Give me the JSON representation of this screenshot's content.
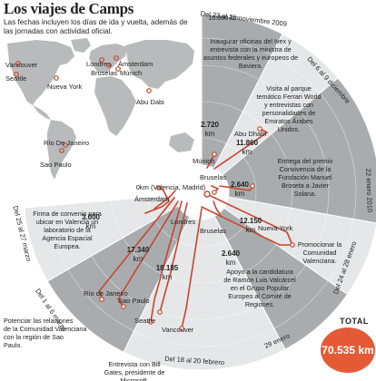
{
  "title": "Los viajes de Camps",
  "subtitle": "Las fechas incluyen los días de ida y vuelta, además de las jornadas con actividad oficial.",
  "colors": {
    "sector_gray": "#a9acae",
    "sector_light": "#e6e7e8",
    "route": "#c8452f",
    "land": "#b8babc",
    "total": "#e45a37"
  },
  "map": {
    "cities": [
      "Vancouver",
      "Seattle",
      "Nueva York",
      "Londres",
      "Ámsterdam",
      "Bruselas",
      "Múnich",
      "Abu Dabi",
      "Río De Janeiro",
      "Sao Paulo"
    ]
  },
  "chart_data": {
    "type": "radial",
    "radius_scale": {
      "label": "10.000 km",
      "max_km": 10000
    },
    "origin_label": "0km (Valencia, Madrid)",
    "trips": [
      {
        "dates": "Del 23 al 25 noviembre 2009",
        "km": "",
        "description": "Inaugurar oficinas del Ivex y entrevista con la ministra de asuntos federales y europeos de Baviera.",
        "destinations": [
          "Múnich"
        ]
      },
      {
        "dates": "Del 6 al 9 diciembre",
        "km": "11.860 km",
        "description": "Visita al parque temático Ferrari World y entrevistas con personalidades de Emiratos Árabes Unidos.",
        "destinations": [
          "Abu Dhabi"
        ]
      },
      {
        "dates": "",
        "km": "2.720 km",
        "description": "",
        "destinations": [
          "Múnich"
        ]
      },
      {
        "dates": "22 enero 2010",
        "km": "2.640 km",
        "description": "Entrega del premio Convivencia de la Fundación Manuel Broseta a Javier Solana.",
        "destinations": [
          "Bruselas"
        ]
      },
      {
        "dates": "Del 24 al 28 enero",
        "km": "12.150 km",
        "description": "Promocionar la Comunidad Valenciana.",
        "destinations": [
          "Nueva York"
        ]
      },
      {
        "dates": "29 enero",
        "km": "2.640 km",
        "description": "Apoyo a la candidatura de Ramón Luis Valcárcel en el Grupo Popular Europeo al Comité de Regiones.",
        "destinations": [
          "Bruselas"
        ]
      },
      {
        "dates": "Del 18 al 20 febrero",
        "km": "18.185 km",
        "description": "Entrevista con Bill Gates, presidente de Microsoft.",
        "destinations": [
          "Seattle",
          "Vancouver"
        ]
      },
      {
        "dates": "Del 1 al 6 marzo",
        "km": "17.340 km",
        "description": "Potenciar las relaciones de la Comunidad Valenciana con la región de Sao Paulo.",
        "destinations": [
          "Río de Janeiro",
          "Sao Paulo"
        ]
      },
      {
        "dates": "Del 25 al 27 marzo",
        "km": "3.000 km",
        "description": "Firma de convenio para ubicar en Valencia un laboratorio de la Agencia Espacial Europea.",
        "destinations": [
          "Ámsterdam"
        ]
      }
    ],
    "route_labels": [
      "Ámsterdam",
      "Londres",
      "Bruselas",
      "Bruselas",
      "Múnich",
      "Abu Dhabi",
      "Nueva York",
      "Seattle",
      "Vancouver",
      "Río de Janeiro",
      "Sao Paulo"
    ],
    "total": {
      "label": "TOTAL",
      "value": "70.535 km"
    }
  }
}
